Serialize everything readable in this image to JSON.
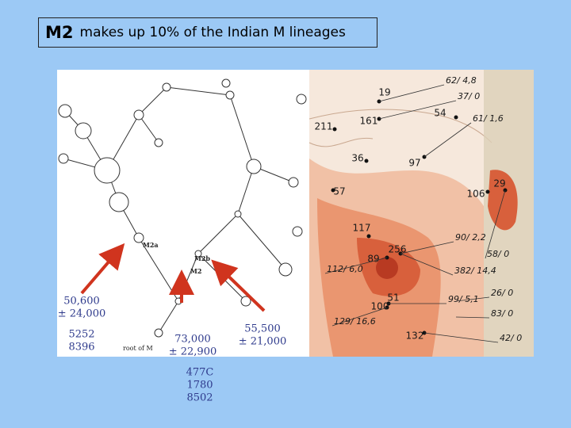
{
  "title": {
    "bold": "M2",
    "rest": "makes up 10% of the Indian M lineages"
  },
  "annotations": [
    {
      "lines": [
        "50,600",
        "± 24,000"
      ]
    },
    {
      "lines": [
        "5252",
        "8396"
      ]
    },
    {
      "lines": [
        "73,000",
        "± 22,900"
      ]
    },
    {
      "lines": [
        "477C",
        "1780",
        "8502"
      ]
    },
    {
      "lines": [
        "55,500",
        "± 21,000"
      ]
    }
  ],
  "tree": {
    "labels": [
      "M2a",
      "M2b",
      "M2",
      "root of M"
    ]
  },
  "map": {
    "counts": [
      "19",
      "54",
      "211",
      "161",
      "36",
      "97",
      "57",
      "106",
      "29",
      "117",
      "256",
      "89",
      "51",
      "100",
      "132"
    ],
    "frequencies": [
      "62/ 4,8",
      "37/ 0",
      "61/ 1,6",
      "90/ 2,2",
      "58/ 0",
      "112/ 6,0",
      "382/ 14,4",
      "99/ 5,1",
      "26/ 0",
      "83/ 0",
      "129/ 16,6",
      "42/ 0"
    ]
  }
}
